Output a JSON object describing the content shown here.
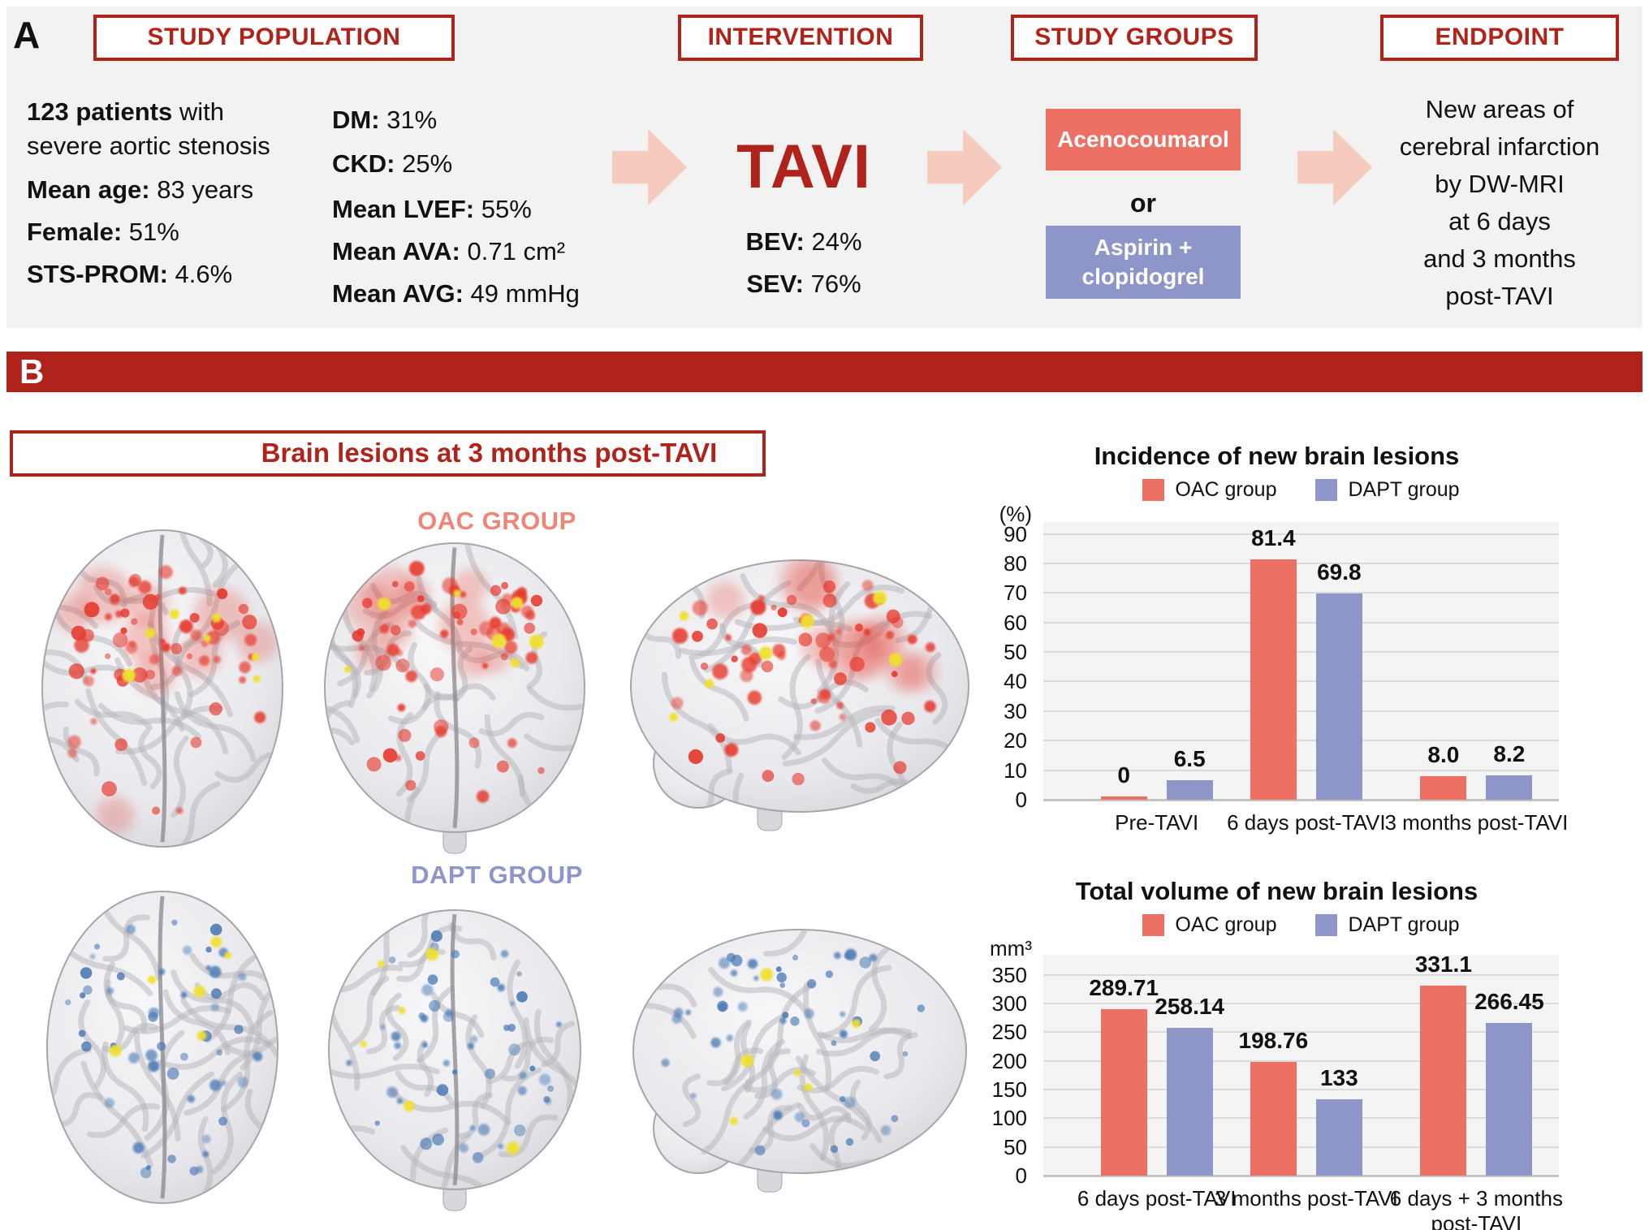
{
  "colors": {
    "dark_red": "#b0231a",
    "panel_gray": "#f2f2f3",
    "oac": "#ec7164",
    "dapt": "#8e96c9",
    "arrow_pink": "#f6cabd",
    "oac_label": "#ee8576",
    "dapt_label": "#8e96c9",
    "lesion_red": "#e63a2e",
    "lesion_blue": "#4b7ab5",
    "lesion_yellow": "#f0e02e",
    "plot_bg": "#f4f4f4",
    "gridline": "#dadada"
  },
  "panel_a": {
    "label": "A",
    "headers": {
      "population": "STUDY POPULATION",
      "intervention": "INTERVENTION",
      "groups": "STUDY GROUPS",
      "endpoint": "ENDPOINT"
    },
    "population": {
      "col1": [
        {
          "b": "123 patients",
          "t": " with"
        },
        {
          "b": "",
          "t": "severe aortic stenosis"
        },
        {
          "b": "Mean age:",
          "t": " 83 years"
        },
        {
          "b": "Female:",
          "t": " 51%"
        },
        {
          "b": "STS-PROM:",
          "t": " 4.6%"
        }
      ],
      "col2": [
        {
          "b": "DM:",
          "t": " 31%"
        },
        {
          "b": "CKD:",
          "t": " 25%"
        },
        {
          "b": "Mean LVEF:",
          "t": " 55%"
        },
        {
          "b": "Mean AVA:",
          "t": " 0.71 cm²"
        },
        {
          "b": "Mean AVG:",
          "t": " 49 mmHg"
        }
      ]
    },
    "intervention": {
      "title": "TAVI",
      "stats": [
        {
          "b": "BEV:",
          "t": " 24%"
        },
        {
          "b": "SEV:",
          "t": " 76%"
        }
      ]
    },
    "groups": {
      "arm1": "Acenocoumarol",
      "connector": "or",
      "arm2": "Aspirin +\nclopidogrel"
    },
    "endpoint_text": "New areas of\ncerebral infarction\nby DW-MRI\nat 6 days\nand 3 months\npost-TAVI"
  },
  "panel_b": {
    "label": "B",
    "title": "Brain lesions at 3 months post-TAVI",
    "oac_group_label": "OAC GROUP",
    "dapt_group_label": "DAPT GROUP"
  },
  "chart_data": [
    {
      "id": "incidence",
      "type": "bar",
      "title": "Incidence of new brain lesions",
      "unit_label": "(%)",
      "categories": [
        "Pre-TAVI",
        "6 days post-TAVI",
        "3 months post-TAVI"
      ],
      "series": [
        {
          "name": "OAC group",
          "color_key": "oac",
          "values": [
            0,
            81.4,
            8.0
          ],
          "labels": [
            "0",
            "81.4",
            "8.0"
          ]
        },
        {
          "name": "DAPT group",
          "color_key": "dapt",
          "values": [
            6.5,
            69.8,
            8.2
          ],
          "labels": [
            "6.5",
            "69.8",
            "8.2"
          ]
        }
      ],
      "ylim": [
        0,
        94
      ],
      "yticks": [
        0,
        10,
        20,
        30,
        40,
        50,
        60,
        70,
        80,
        90
      ],
      "legend_position": "top",
      "grid": true
    },
    {
      "id": "volume",
      "type": "bar",
      "title": "Total volume of new brain lesions",
      "unit_label": "mm³",
      "categories": [
        "6 days post-TAVI",
        "3 months post-TAVI",
        "6 days + 3 months\npost-TAVI"
      ],
      "series": [
        {
          "name": "OAC group",
          "color_key": "oac",
          "values": [
            289.71,
            198.76,
            331.1
          ],
          "labels": [
            "289.71",
            "198.76",
            "331.1"
          ]
        },
        {
          "name": "DAPT group",
          "color_key": "dapt",
          "values": [
            258.14,
            133,
            266.45
          ],
          "labels": [
            "258.14",
            "133",
            "266.45"
          ]
        }
      ],
      "ylim": [
        0,
        385
      ],
      "yticks": [
        0,
        50,
        100,
        150,
        200,
        250,
        300,
        350
      ],
      "legend_position": "top",
      "grid": true
    }
  ]
}
